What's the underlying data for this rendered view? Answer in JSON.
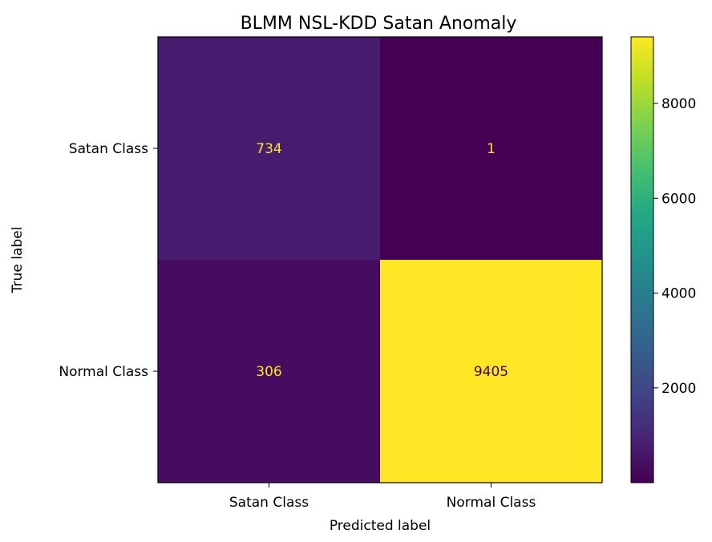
{
  "chart_data": {
    "type": "heatmap",
    "title": "BLMM NSL-KDD Satan Anomaly",
    "xlabel": "Predicted label",
    "ylabel": "True label",
    "x_categories": [
      "Satan Class",
      "Normal Class"
    ],
    "y_categories": [
      "Satan Class",
      "Normal Class"
    ],
    "values": [
      [
        734,
        1
      ],
      [
        306,
        9405
      ]
    ],
    "colormap": "viridis",
    "value_range": [
      1,
      9405
    ],
    "colorbar_ticks": [
      2000,
      4000,
      6000,
      8000
    ],
    "colorbar_tick_labels": [
      "2000",
      "4000",
      "6000",
      "8000"
    ],
    "text_colors": {
      "low": "#fde725",
      "high": "#440154"
    },
    "grid": false
  }
}
